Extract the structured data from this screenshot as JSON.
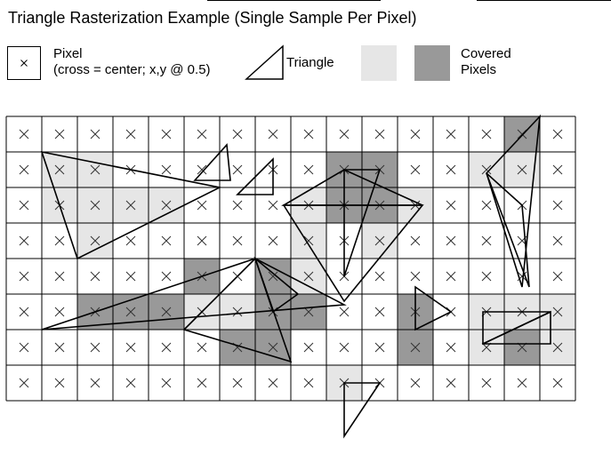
{
  "title": "Triangle Rasterization Example (Single Sample Per Pixel)",
  "legend": {
    "pixel": {
      "label": "Pixel",
      "sublabel": "(cross = center; x,y @ 0.5)",
      "icon": "pixel-cross-icon"
    },
    "triangle": {
      "label": "Triangle",
      "icon": "triangle-icon"
    },
    "covered": {
      "label_line1": "Covered",
      "label_line2": "Pixels"
    }
  },
  "colors": {
    "light_fill": "#e6e6e6",
    "dark_fill": "#999999",
    "grid_line": "#000000",
    "triangle_stroke": "#000000"
  },
  "grid": {
    "cols": 16,
    "rows": 8
  },
  "light_pixels": [
    [
      1,
      1
    ],
    [
      2,
      1
    ],
    [
      1,
      2
    ],
    [
      2,
      2
    ],
    [
      3,
      2
    ],
    [
      4,
      2
    ],
    [
      2,
      3
    ],
    [
      8,
      2
    ],
    [
      11,
      2
    ],
    [
      8,
      3
    ],
    [
      10,
      3
    ],
    [
      7,
      4
    ],
    [
      8,
      4
    ],
    [
      5,
      5
    ],
    [
      6,
      5
    ],
    [
      13,
      1
    ],
    [
      14,
      1
    ],
    [
      13,
      5
    ],
    [
      14,
      5
    ],
    [
      15,
      5
    ],
    [
      13,
      6
    ],
    [
      15,
      6
    ],
    [
      9,
      7
    ]
  ],
  "dark_pixels": [
    [
      14,
      0
    ],
    [
      9,
      1
    ],
    [
      10,
      1
    ],
    [
      9,
      2
    ],
    [
      10,
      2
    ],
    [
      5,
      4
    ],
    [
      7,
      4
    ],
    [
      2,
      5
    ],
    [
      3,
      5
    ],
    [
      4,
      5
    ],
    [
      7,
      5
    ],
    [
      8,
      5
    ],
    [
      11,
      5
    ],
    [
      11,
      6
    ],
    [
      14,
      6
    ],
    [
      6,
      6
    ],
    [
      7,
      6
    ]
  ],
  "triangles": [
    [
      [
        1,
        1
      ],
      [
        6,
        2
      ],
      [
        2,
        4
      ]
    ],
    [
      [
        5.3,
        1.8
      ],
      [
        6.2,
        0.8
      ],
      [
        6.3,
        1.8
      ]
    ],
    [
      [
        6.5,
        2.2
      ],
      [
        7.5,
        1.2
      ],
      [
        7.5,
        2.2
      ]
    ],
    [
      [
        7.8,
        2.5
      ],
      [
        9.5,
        1.5
      ],
      [
        11.7,
        2.5
      ]
    ],
    [
      [
        7.8,
        2.5
      ],
      [
        9.5,
        5.2
      ],
      [
        11.7,
        2.5
      ]
    ],
    [
      [
        9.5,
        1.5
      ],
      [
        10.5,
        1.5
      ],
      [
        9.5,
        4.5
      ]
    ],
    [
      [
        1,
        6
      ],
      [
        7,
        4
      ],
      [
        9.5,
        5.3
      ]
    ],
    [
      [
        5,
        6
      ],
      [
        7,
        4
      ],
      [
        8,
        6.9
      ]
    ],
    [
      [
        7,
        4
      ],
      [
        7.5,
        5.5
      ],
      [
        8.2,
        5
      ]
    ],
    [
      [
        11.5,
        4.8
      ],
      [
        11.5,
        6
      ],
      [
        12.5,
        5.5
      ]
    ],
    [
      [
        13.4,
        6.4
      ],
      [
        13.4,
        5.5
      ],
      [
        15.3,
        5.5
      ]
    ],
    [
      [
        13.4,
        6.4
      ],
      [
        15.3,
        5.5
      ],
      [
        15.3,
        6.4
      ]
    ],
    [
      [
        13.5,
        1.6
      ],
      [
        15.0,
        0.0
      ],
      [
        14.5,
        4.8
      ]
    ],
    [
      [
        13.5,
        1.6
      ],
      [
        14.5,
        2.5
      ],
      [
        14.7,
        4.8
      ]
    ],
    [
      [
        9.5,
        7.5
      ],
      [
        10.5,
        7.5
      ],
      [
        9.5,
        9.0
      ]
    ]
  ]
}
